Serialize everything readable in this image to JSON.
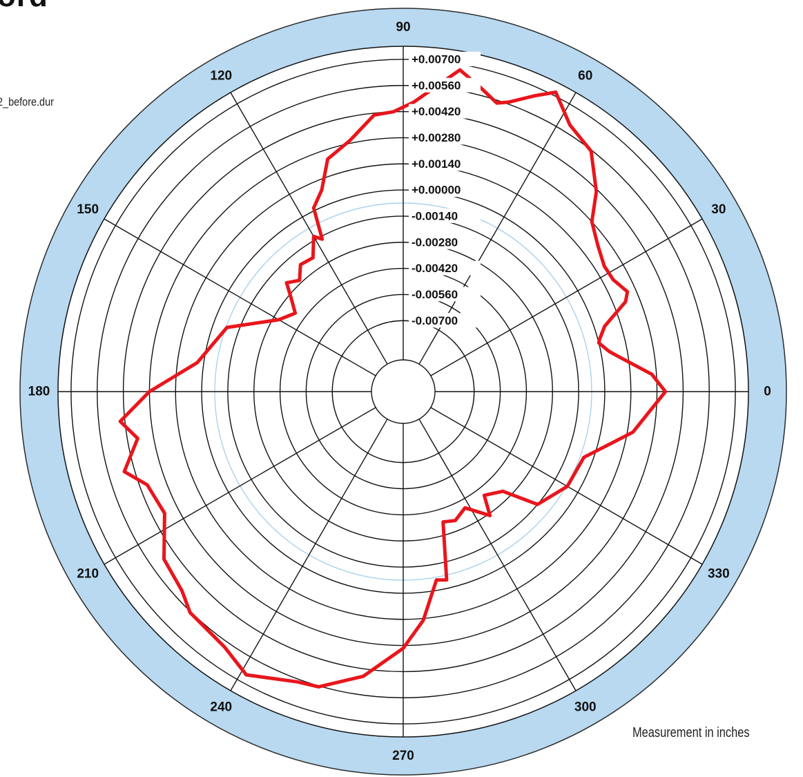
{
  "page": {
    "title_fragment": "ord",
    "file_label": "2_before.dur",
    "units_note": "Measurement in inches"
  },
  "colors": {
    "ring_fill": "#b8d9f0",
    "ring_stroke": "#2b2b2b",
    "grid": "#111111",
    "reference_circle": "#a9d2ee",
    "series": "#e8161c"
  },
  "chart_data": {
    "type": "polar-line",
    "angular_unit": "degrees",
    "angle_labels": [
      "0",
      "30",
      "60",
      "90",
      "120",
      "150",
      "180",
      "210",
      "240",
      "270",
      "300",
      "330"
    ],
    "radial_labels": [
      "-0.00700",
      "-0.00560",
      "-0.00420",
      "-0.00280",
      "-0.00140",
      "+0.00000",
      "+0.00140",
      "+0.00280",
      "+0.00420",
      "+0.00560",
      "+0.00700"
    ],
    "radial_range": [
      -0.0091,
      0.0077
    ],
    "reference_value": -0.0007,
    "series": [
      {
        "points": [
          [
            0,
            0.00325
          ],
          [
            4,
            0.00255
          ],
          [
            9,
            0.00095
          ],
          [
            11,
            0.00045
          ],
          [
            14,
            0.0
          ],
          [
            15,
            0.0001
          ],
          [
            18,
            0.00055
          ],
          [
            22,
            0.00205
          ],
          [
            24,
            0.00235
          ],
          [
            28,
            0.00195
          ],
          [
            32,
            0.0019
          ],
          [
            37,
            0.00225
          ],
          [
            42,
            0.0028
          ],
          [
            46,
            0.0041
          ],
          [
            52,
            0.00555
          ],
          [
            58,
            0.00605
          ],
          [
            63,
            0.0072
          ],
          [
            66,
            0.00655
          ],
          [
            70,
            0.0057
          ],
          [
            72,
            0.00545
          ],
          [
            76,
            0.00605
          ],
          [
            80,
            0.0067
          ],
          [
            84,
            0.0056
          ],
          [
            88,
            0.0047
          ],
          [
            92,
            0.0042
          ],
          [
            96,
            0.0041
          ],
          [
            102,
            0.00295
          ],
          [
            108,
            0.0023
          ],
          [
            112,
            0.00085
          ],
          [
            116,
            0.00015
          ],
          [
            118,
            -0.00155
          ],
          [
            120,
            -0.0012
          ],
          [
            124,
            -0.00215
          ],
          [
            129,
            -0.00205
          ],
          [
            133,
            -0.00265
          ],
          [
            137,
            -0.00225
          ],
          [
            140,
            -0.00295
          ],
          [
            144,
            -0.00365
          ],
          [
            150,
            -0.0031
          ],
          [
            160,
            -0.00075
          ],
          [
            172,
            0.00035
          ],
          [
            180,
            0.0028
          ],
          [
            186,
            0.00445
          ],
          [
            190,
            0.00365
          ],
          [
            196,
            0.00475
          ],
          [
            200,
            0.0038
          ],
          [
            207,
            0.00355
          ],
          [
            215,
            0.00485
          ],
          [
            222,
            0.00515
          ],
          [
            226,
            0.00565
          ],
          [
            235,
            0.0059
          ],
          [
            241,
            0.00655
          ],
          [
            250,
            0.00575
          ],
          [
            254,
            0.00565
          ],
          [
            262,
            0.0046
          ],
          [
            270,
            0.00295
          ],
          [
            275,
            0.0015
          ],
          [
            280,
            -0.00055
          ],
          [
            283,
            -0.00045
          ],
          [
            287,
            -0.0035
          ],
          [
            292,
            -0.00335
          ],
          [
            298,
            -0.00375
          ],
          [
            305,
            -0.0027
          ],
          [
            308,
            -0.00375
          ],
          [
            315,
            -0.00325
          ],
          [
            320,
            -0.0014
          ],
          [
            330,
            -0.00065
          ],
          [
            340,
            -0.0005
          ],
          [
            350,
            0.0017
          ]
        ]
      }
    ],
    "grid": true
  }
}
